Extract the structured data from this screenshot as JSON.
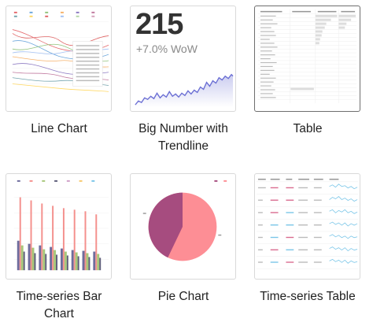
{
  "cards": [
    {
      "label": "Line Chart",
      "icon": "line-chart-thumbnail"
    },
    {
      "label": "Big Number with Trendline",
      "icon": "big-number-trendline-thumbnail",
      "number": "215",
      "subtext": "+7.0% WoW"
    },
    {
      "label": "Table",
      "icon": "table-thumbnail",
      "selected": true
    },
    {
      "label": "Time-series Bar Chart",
      "icon": "time-series-bar-thumbnail"
    },
    {
      "label": "Pie Chart",
      "icon": "pie-chart-thumbnail"
    },
    {
      "label": "Time-series Table",
      "icon": "time-series-table-thumbnail"
    }
  ],
  "colors": {
    "border": "#d9d9d9",
    "selected_border": "#6e6e6e",
    "trend_line": "#6b6fd4",
    "pie_primary": "#fd8e95",
    "pie_secondary": "#a64c7f",
    "bar_accent": "#f4908d",
    "sparkline": "#7ac6e8"
  }
}
